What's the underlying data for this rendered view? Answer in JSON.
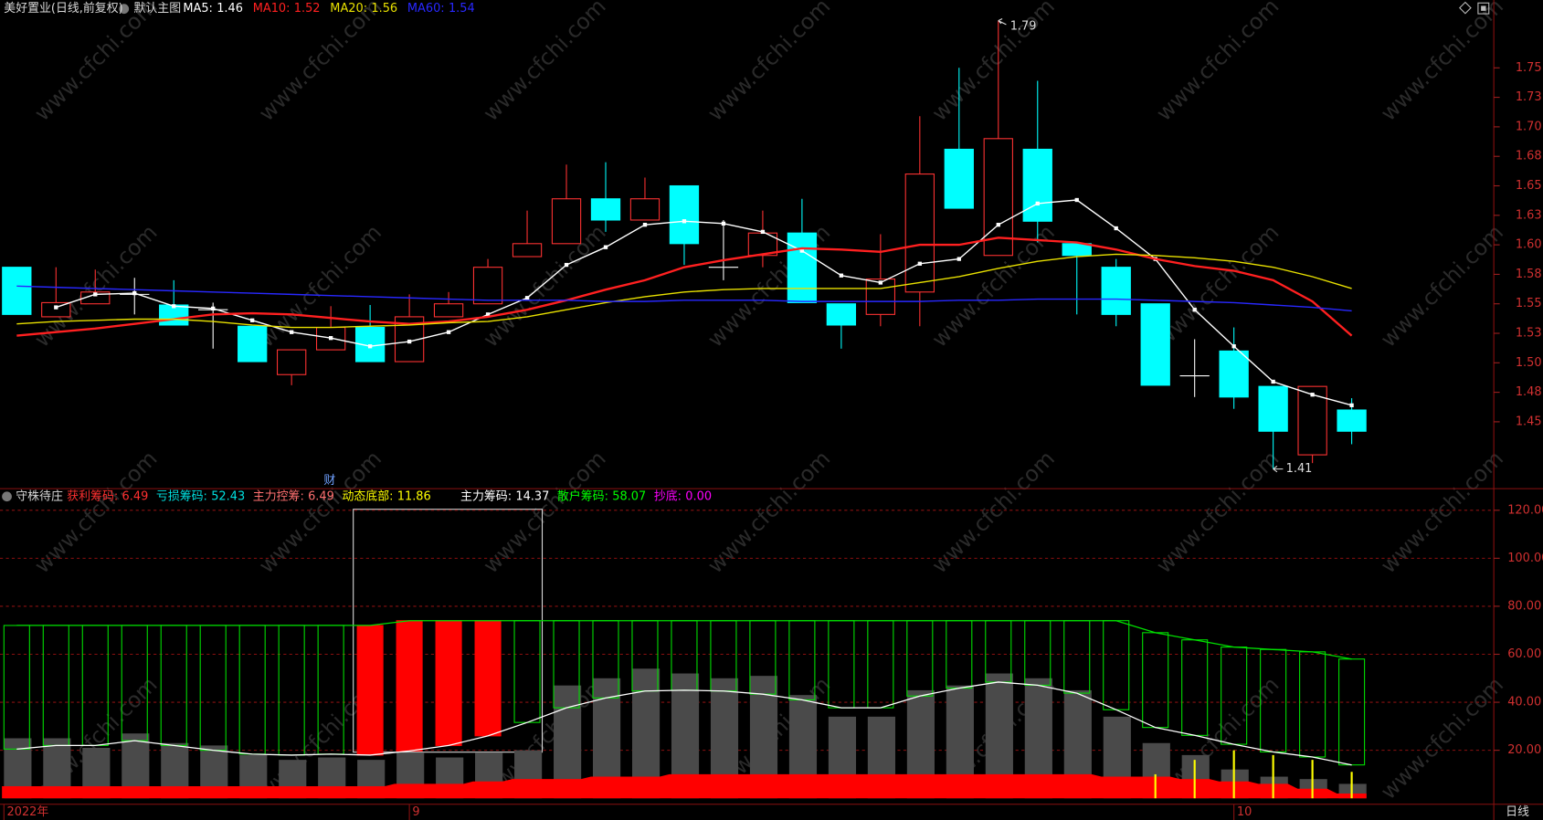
{
  "chart_data": [
    {
      "type": "candlestick",
      "title": "美好置业(日线,前复权)",
      "subtitle": "默认主图",
      "marker": "财",
      "watermark": "www.cfchi.com",
      "categories": [
        "2022年",
        null,
        null,
        null,
        null,
        null,
        null,
        null,
        null,
        null,
        "9",
        null,
        null,
        null,
        null,
        null,
        null,
        null,
        null,
        null,
        null,
        null,
        null,
        null,
        null,
        null,
        null,
        null,
        null,
        null,
        null,
        "10",
        null,
        null,
        null
      ],
      "open": [
        1.581,
        1.539,
        1.55,
        1.558,
        1.549,
        1.545,
        1.531,
        1.49,
        1.511,
        1.53,
        1.501,
        1.539,
        1.55,
        1.59,
        1.601,
        1.639,
        1.621,
        1.65,
        1.581,
        1.591,
        1.61,
        1.55,
        1.541,
        1.56,
        1.681,
        1.591,
        1.681,
        1.601,
        1.581,
        1.55,
        1.489,
        1.51,
        1.48,
        1.422,
        1.46
      ],
      "high": [
        1.581,
        1.581,
        1.579,
        1.572,
        1.57,
        1.551,
        1.531,
        1.511,
        1.548,
        1.549,
        1.558,
        1.56,
        1.588,
        1.629,
        1.668,
        1.67,
        1.657,
        1.65,
        1.621,
        1.629,
        1.639,
        1.55,
        1.609,
        1.709,
        1.75,
        1.79,
        1.739,
        1.601,
        1.588,
        1.55,
        1.52,
        1.53,
        1.48,
        1.48,
        1.47
      ],
      "low": [
        1.541,
        1.539,
        1.55,
        1.541,
        1.532,
        1.512,
        1.501,
        1.481,
        1.511,
        1.501,
        1.501,
        1.539,
        1.55,
        1.59,
        1.601,
        1.611,
        1.621,
        1.583,
        1.57,
        1.581,
        1.551,
        1.512,
        1.531,
        1.531,
        1.631,
        1.591,
        1.602,
        1.541,
        1.531,
        1.481,
        1.471,
        1.461,
        1.41,
        1.415,
        1.431
      ],
      "close": [
        1.541,
        1.551,
        1.56,
        1.558,
        1.532,
        1.545,
        1.501,
        1.511,
        1.53,
        1.501,
        1.539,
        1.55,
        1.581,
        1.601,
        1.639,
        1.621,
        1.639,
        1.601,
        1.581,
        1.61,
        1.551,
        1.532,
        1.571,
        1.66,
        1.631,
        1.69,
        1.62,
        1.591,
        1.541,
        1.481,
        1.489,
        1.471,
        1.442,
        1.48,
        1.442
      ],
      "up_color": "#ff3232",
      "down_color": "#00ffff",
      "flat_color": "#ffffff",
      "series": [
        {
          "name": "MA5:",
          "value": 1.46,
          "color": "#ffffff",
          "markers": true,
          "values": [
            null,
            1.547,
            1.558,
            1.559,
            1.548,
            1.546,
            1.536,
            1.526,
            1.521,
            1.514,
            1.518,
            1.526,
            1.541,
            1.555,
            1.583,
            1.598,
            1.617,
            1.62,
            1.618,
            1.611,
            1.595,
            1.574,
            1.568,
            1.584,
            1.588,
            1.617,
            1.635,
            1.638,
            1.614,
            1.588,
            1.545,
            1.514,
            1.484,
            1.473,
            1.464
          ]
        },
        {
          "name": "MA10:",
          "value": 1.52,
          "color": "#ff2020",
          "values": [
            1.523,
            1.526,
            1.529,
            1.533,
            1.537,
            1.541,
            1.542,
            1.541,
            1.538,
            1.535,
            1.533,
            1.535,
            1.539,
            1.545,
            1.553,
            1.562,
            1.57,
            1.581,
            1.587,
            1.592,
            1.597,
            1.596,
            1.594,
            1.6,
            1.6,
            1.606,
            1.604,
            1.602,
            1.596,
            1.588,
            1.582,
            1.578,
            1.57,
            1.552,
            1.523
          ]
        },
        {
          "name": "MA20:",
          "value": 1.56,
          "color": "#e8e000",
          "values": [
            1.533,
            1.535,
            1.536,
            1.537,
            1.537,
            1.535,
            1.532,
            1.53,
            1.53,
            1.531,
            1.532,
            1.534,
            1.535,
            1.539,
            1.545,
            1.551,
            1.556,
            1.56,
            1.562,
            1.563,
            1.563,
            1.563,
            1.563,
            1.568,
            1.573,
            1.58,
            1.586,
            1.59,
            1.592,
            1.591,
            1.589,
            1.586,
            1.581,
            1.573,
            1.563
          ]
        },
        {
          "name": "MA60:",
          "value": 1.54,
          "color": "#2828ff",
          "values": [
            1.565,
            1.564,
            1.563,
            1.562,
            1.561,
            1.56,
            1.559,
            1.558,
            1.557,
            1.556,
            1.555,
            1.554,
            1.553,
            1.553,
            1.553,
            1.552,
            1.552,
            1.553,
            1.553,
            1.553,
            1.552,
            1.552,
            1.552,
            1.552,
            1.553,
            1.553,
            1.554,
            1.554,
            1.554,
            1.553,
            1.552,
            1.551,
            1.549,
            1.547,
            1.544
          ]
        }
      ],
      "ylim": [
        1.395,
        1.8075
      ],
      "yticks": [
        1.45,
        {
          "value": 1.475,
          "label": "1.48"
        },
        {
          "value": 1.5,
          "label": "1.50"
        },
        {
          "value": 1.525,
          "label": "1.53"
        },
        1.55,
        {
          "value": 1.575,
          "label": "1.58"
        },
        {
          "value": 1.6,
          "label": "1.60"
        },
        {
          "value": 1.625,
          "label": "1.63"
        },
        1.65,
        {
          "value": 1.675,
          "label": "1.68"
        },
        {
          "value": 1.7,
          "label": "1.70"
        },
        {
          "value": 1.725,
          "label": "1.73"
        },
        1.75
      ]
    },
    {
      "type": "indicator",
      "title": "守株待庄",
      "legend": [
        {
          "name": "获利筹码:",
          "value": 6.49,
          "color": "#ff3030"
        },
        {
          "name": "亏损筹码:",
          "value": 52.43,
          "color": "#00e0e0"
        },
        {
          "name": "主力控筹:",
          "value": 6.49,
          "color": "#ff7070"
        },
        {
          "name": "动态底部:",
          "value": 11.86,
          "color": "#ffff00"
        },
        {
          "name": "主力筹码:",
          "value": 14.37,
          "color": "#ffffff"
        },
        {
          "name": "散户筹码:",
          "value": 58.07,
          "color": "#00ff00"
        },
        {
          "name": "抄底:",
          "value": 0.0,
          "color": "#ff00ff"
        }
      ],
      "ylim": [
        -2.5,
        129
      ],
      "yticks": [
        {
          "value": 20,
          "label": "20.00"
        },
        {
          "value": 40,
          "label": "40.00"
        },
        {
          "value": 60,
          "label": "60.00"
        },
        {
          "value": 80,
          "label": "80.00"
        },
        {
          "value": 100,
          "label": "100.00"
        },
        {
          "value": 120,
          "label": "120.00"
        }
      ],
      "grid": true,
      "columns": {
        "color": "#4a4a4a",
        "values": [
          25,
          25,
          21,
          27,
          23,
          22,
          18,
          16,
          17,
          16,
          19,
          17,
          19,
          20,
          47,
          50,
          54,
          52,
          50,
          51,
          43,
          34,
          34,
          45,
          47,
          52,
          50,
          45,
          34,
          23,
          18,
          12,
          9,
          8,
          6
        ]
      },
      "area": {
        "color": "#ff0000",
        "values": [
          5,
          5,
          5,
          5,
          5,
          5,
          5,
          5,
          5,
          5,
          6,
          6,
          7,
          8,
          8,
          9,
          9,
          10,
          10,
          10,
          10,
          10,
          10,
          10,
          10,
          10,
          10,
          10,
          9,
          9,
          8,
          7,
          6,
          4,
          2
        ]
      },
      "boxes": {
        "color": "#00e000",
        "line_color": "#ffffff",
        "top": [
          72,
          72,
          72,
          72,
          72,
          72,
          72,
          72,
          72,
          72,
          74,
          74,
          74,
          74,
          74,
          74,
          74,
          74,
          74,
          74,
          74,
          74,
          74,
          74,
          74,
          74,
          74,
          74,
          74,
          69,
          66,
          63,
          62,
          61,
          58
        ],
        "bottom": [
          20.5,
          22,
          22,
          24,
          22,
          20,
          18.4,
          18,
          18.4,
          18,
          19.7,
          22,
          26,
          31.6,
          37.7,
          41.8,
          44.7,
          45,
          44.7,
          43.4,
          41,
          37.7,
          37.7,
          42.6,
          45.9,
          48.4,
          47.1,
          43.8,
          36.9,
          29.5,
          26.2,
          22.5,
          19.3,
          17.2,
          13.9
        ],
        "fills": [
          "none",
          "none",
          "none",
          "none",
          "none",
          "none",
          "none",
          "none",
          "none",
          "#ff0000",
          "#ff0000",
          "#ff0000",
          "#ff0000",
          "none",
          "none",
          "none",
          "none",
          "none",
          "none",
          "none",
          "none",
          "none",
          "none",
          "none",
          "none",
          "none",
          "none",
          "none",
          "none",
          "none",
          "none",
          "none",
          "none",
          "none",
          "none"
        ]
      },
      "signals": {
        "color": "#ffff00",
        "values": [
          null,
          null,
          null,
          null,
          null,
          null,
          null,
          null,
          null,
          null,
          null,
          null,
          null,
          null,
          null,
          null,
          null,
          null,
          null,
          null,
          null,
          null,
          null,
          null,
          null,
          null,
          null,
          null,
          null,
          10,
          16,
          20,
          18,
          16,
          11
        ]
      }
    }
  ],
  "footer": "日线"
}
